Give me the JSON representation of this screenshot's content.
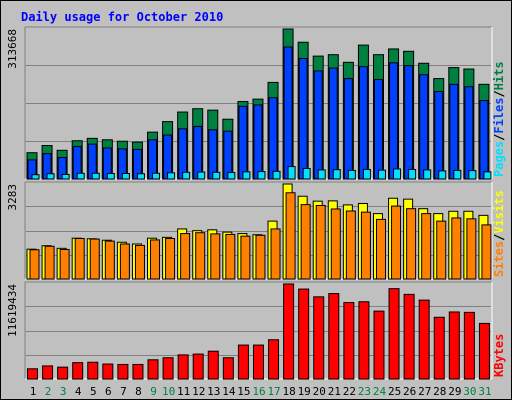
{
  "title": "Daily usage for October 2010",
  "colors": {
    "hits": "#008040",
    "files": "#0040ff",
    "pages": "#00e0ff",
    "visits": "#ffff00",
    "sites": "#ff8000",
    "kbytes": "#ff0000",
    "title": "#0000ff",
    "weekend_label": "#008040"
  },
  "chart_data": [
    {
      "type": "bar",
      "panel": "hits-files-pages",
      "ymax_label": "313668",
      "ymax": 313668,
      "legend": {
        "pages": "Pages",
        "files": "Files",
        "hits": "Hits",
        "sep": "/"
      },
      "categories": [
        "1",
        "2",
        "3",
        "4",
        "5",
        "6",
        "7",
        "8",
        "9",
        "10",
        "11",
        "12",
        "13",
        "14",
        "15",
        "16",
        "17",
        "18",
        "19",
        "20",
        "21",
        "22",
        "23",
        "24",
        "25",
        "26",
        "27",
        "28",
        "29",
        "30",
        "31"
      ],
      "series": [
        {
          "name": "Hits",
          "values": [
            55000,
            70000,
            60000,
            80000,
            85000,
            82000,
            79000,
            77000,
            98000,
            120000,
            140000,
            147000,
            144000,
            125000,
            162000,
            167000,
            202000,
            313668,
            286000,
            257000,
            260000,
            244000,
            280000,
            260000,
            272000,
            267000,
            242000,
            210000,
            233000,
            230000,
            198000
          ]
        },
        {
          "name": "Files",
          "values": [
            40000,
            53000,
            45000,
            68000,
            73000,
            65000,
            63000,
            62000,
            82000,
            92000,
            105000,
            110000,
            103000,
            100000,
            152000,
            155000,
            170000,
            276000,
            252000,
            226000,
            232000,
            210000,
            235000,
            208000,
            243000,
            237000,
            218000,
            183000,
            198000,
            193000,
            164000
          ]
        },
        {
          "name": "Pages",
          "values": [
            9000,
            11000,
            9500,
            12000,
            12000,
            11500,
            11500,
            11000,
            12000,
            13000,
            14000,
            14500,
            14000,
            13500,
            15000,
            15500,
            16000,
            26000,
            22000,
            19000,
            19500,
            18000,
            20000,
            18500,
            21000,
            20000,
            19000,
            17000,
            18000,
            17500,
            15000
          ]
        }
      ]
    },
    {
      "type": "bar",
      "panel": "visits-sites",
      "ymax_label": "3283",
      "ymax": 3283,
      "legend": {
        "sites": "Sites",
        "visits": "Visits",
        "sep": "/"
      },
      "categories": [
        "1",
        "2",
        "3",
        "4",
        "5",
        "6",
        "7",
        "8",
        "9",
        "10",
        "11",
        "12",
        "13",
        "14",
        "15",
        "16",
        "17",
        "18",
        "19",
        "20",
        "21",
        "22",
        "23",
        "24",
        "25",
        "26",
        "27",
        "28",
        "29",
        "30",
        "31"
      ],
      "series": [
        {
          "name": "Visits",
          "values": [
            1030,
            1150,
            1060,
            1410,
            1390,
            1340,
            1270,
            1210,
            1410,
            1440,
            1730,
            1670,
            1700,
            1620,
            1570,
            1530,
            2000,
            3283,
            2860,
            2690,
            2700,
            2560,
            2610,
            2260,
            2790,
            2760,
            2430,
            2260,
            2340,
            2340,
            2200
          ]
        },
        {
          "name": "Sites",
          "values": [
            1010,
            1130,
            1020,
            1400,
            1380,
            1310,
            1210,
            1160,
            1350,
            1400,
            1570,
            1600,
            1560,
            1540,
            1480,
            1510,
            1730,
            2980,
            2570,
            2540,
            2420,
            2350,
            2310,
            2060,
            2520,
            2430,
            2260,
            2000,
            2110,
            2080,
            1870
          ]
        }
      ]
    },
    {
      "type": "bar",
      "panel": "kbytes",
      "ymax_label": "11619434",
      "ymax": 11619434,
      "legend": {
        "kbytes": "KBytes"
      },
      "categories": [
        "1",
        "2",
        "3",
        "4",
        "5",
        "6",
        "7",
        "8",
        "9",
        "10",
        "11",
        "12",
        "13",
        "14",
        "15",
        "16",
        "17",
        "18",
        "19",
        "20",
        "21",
        "22",
        "23",
        "24",
        "25",
        "26",
        "27",
        "28",
        "29",
        "30",
        "31"
      ],
      "series": [
        {
          "name": "KBytes",
          "values": [
            1250000,
            1600000,
            1450000,
            2000000,
            2050000,
            1830000,
            1780000,
            1780000,
            2350000,
            2600000,
            2950000,
            3050000,
            3400000,
            2600000,
            4150000,
            4150000,
            4800000,
            11619434,
            11000000,
            10050000,
            10450000,
            9350000,
            9450000,
            8300000,
            11050000,
            10350000,
            9650000,
            7550000,
            8200000,
            8150000,
            6800000
          ]
        }
      ]
    }
  ],
  "x_labels": [
    {
      "text": "1",
      "weekend": false
    },
    {
      "text": "2",
      "weekend": true
    },
    {
      "text": "3",
      "weekend": true
    },
    {
      "text": "4",
      "weekend": false
    },
    {
      "text": "5",
      "weekend": false
    },
    {
      "text": "6",
      "weekend": false
    },
    {
      "text": "7",
      "weekend": false
    },
    {
      "text": "8",
      "weekend": false
    },
    {
      "text": "9",
      "weekend": true
    },
    {
      "text": "10",
      "weekend": true
    },
    {
      "text": "11",
      "weekend": false
    },
    {
      "text": "12",
      "weekend": false
    },
    {
      "text": "13",
      "weekend": false
    },
    {
      "text": "14",
      "weekend": false
    },
    {
      "text": "15",
      "weekend": false
    },
    {
      "text": "16",
      "weekend": true
    },
    {
      "text": "17",
      "weekend": true
    },
    {
      "text": "18",
      "weekend": false
    },
    {
      "text": "19",
      "weekend": false
    },
    {
      "text": "20",
      "weekend": false
    },
    {
      "text": "21",
      "weekend": false
    },
    {
      "text": "22",
      "weekend": false
    },
    {
      "text": "23",
      "weekend": true
    },
    {
      "text": "24",
      "weekend": true
    },
    {
      "text": "25",
      "weekend": false
    },
    {
      "text": "26",
      "weekend": false
    },
    {
      "text": "27",
      "weekend": false
    },
    {
      "text": "28",
      "weekend": false
    },
    {
      "text": "29",
      "weekend": false
    },
    {
      "text": "30",
      "weekend": true
    },
    {
      "text": "31",
      "weekend": true
    }
  ]
}
